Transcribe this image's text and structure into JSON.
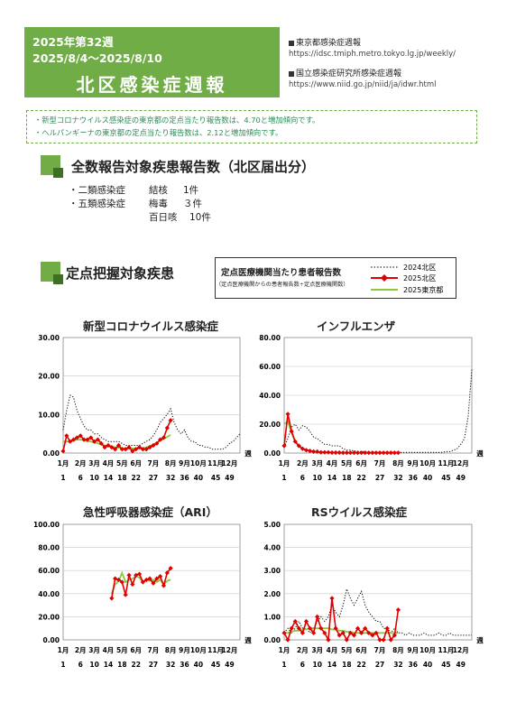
{
  "header": {
    "week": "2025年第32週",
    "range": "2025/8/4～2025/8/10",
    "title": "北区感染症週報",
    "bg": "#70ad47"
  },
  "links": [
    {
      "label": "東京都感染症週報",
      "url": "https://idsc.tmiph.metro.tokyo.lg.jp/weekly/"
    },
    {
      "label": "国立感染症研究所感染症週報",
      "url": "https://www.niid.go.jp/niid/ja/idwr.html"
    }
  ],
  "notice": [
    "・新型コロナウイルス感染症の東京都の定点当たり報告数は、4.70と増加傾向です。",
    "・ヘルパンギーナの東京都の定点当たり報告数は、2.12と増加傾向です。"
  ],
  "section1": {
    "title": "全数報告対象疾患報告数（北区届出分）",
    "rows": [
      {
        "category": "・二類感染症",
        "disease": "結核",
        "count": "1件"
      },
      {
        "category": "・五類感染症",
        "disease": "梅毒",
        "count": "３件"
      },
      {
        "category": "",
        "disease": "百日咳",
        "count": "10件"
      }
    ]
  },
  "section2": {
    "title": "定点把握対象疾患"
  },
  "legend": {
    "title": "定点医療機関当たり患者報告数",
    "subtitle": "（定点医療機関からの患者報告数÷定点医療機関数）",
    "items": [
      {
        "name": "2024北区",
        "style": "dotted",
        "color": "#000000"
      },
      {
        "name": "2025北区",
        "style": "marker",
        "color": "#e00000"
      },
      {
        "name": "2025東京都",
        "style": "line",
        "color": "#8dc63f"
      }
    ]
  },
  "x_axis": {
    "months": [
      "1月",
      "2月",
      "3月",
      "4月",
      "5月",
      "6月",
      "7月",
      "8月",
      "9月",
      "10月",
      "11月",
      "12月"
    ],
    "weeks": [
      "1",
      "6",
      "10",
      "14",
      "18",
      "22",
      "27",
      "32",
      "36",
      "40",
      "45",
      "49"
    ],
    "unit": "週"
  },
  "chart_data": [
    {
      "type": "line",
      "title": "新型コロナウイルス感染症",
      "ylim": [
        0,
        30
      ],
      "yticks": [
        "0.00",
        "10.00",
        "20.00",
        "30.00"
      ],
      "grid": true,
      "series": [
        {
          "name": "2024北区",
          "x": [
            1,
            2,
            3,
            4,
            5,
            6,
            7,
            8,
            9,
            10,
            11,
            12,
            13,
            14,
            15,
            16,
            17,
            18,
            19,
            20,
            21,
            22,
            23,
            24,
            25,
            26,
            27,
            28,
            29,
            30,
            31,
            32,
            33,
            34,
            35,
            36,
            37,
            38,
            39,
            40,
            41,
            42,
            43,
            44,
            45,
            46,
            47,
            48,
            49,
            50,
            51,
            52
          ],
          "values": [
            6,
            11,
            15,
            14.5,
            11,
            9,
            7,
            6,
            6,
            5,
            5,
            4,
            3.5,
            3,
            3,
            3,
            3,
            2.5,
            2,
            2,
            2,
            2,
            2,
            2.5,
            3,
            3.5,
            4.5,
            6,
            8,
            9,
            10,
            11.5,
            8,
            6,
            5,
            6,
            4,
            3,
            3,
            2,
            2,
            1.5,
            1.5,
            1,
            1,
            1,
            1,
            1.5,
            2.5,
            3,
            4,
            5
          ]
        },
        {
          "name": "2025北区",
          "x": [
            1,
            2,
            3,
            4,
            5,
            6,
            7,
            8,
            9,
            10,
            11,
            12,
            13,
            14,
            15,
            16,
            17,
            18,
            19,
            20,
            21,
            22,
            23,
            24,
            25,
            26,
            27,
            28,
            29,
            30,
            31,
            32
          ],
          "values": [
            0.5,
            4.5,
            3,
            3.5,
            4,
            4.5,
            3.5,
            3.5,
            4,
            3,
            3.5,
            2.5,
            1.5,
            2,
            1.5,
            1,
            2,
            1,
            1,
            1.5,
            0.5,
            1,
            1.5,
            1,
            1,
            1.5,
            2,
            2.5,
            3.5,
            4,
            6.5,
            8.5
          ]
        },
        {
          "name": "2025東京都",
          "x": [
            1,
            2,
            3,
            4,
            5,
            6,
            7,
            8,
            9,
            10,
            11,
            12,
            13,
            14,
            15,
            16,
            17,
            18,
            19,
            20,
            21,
            22,
            23,
            24,
            25,
            26,
            27,
            28,
            29,
            30,
            31,
            32
          ],
          "values": [
            3,
            3,
            3,
            3.2,
            3.5,
            3.5,
            3.3,
            3,
            3,
            2.7,
            2.5,
            2.2,
            2,
            1.9,
            1.7,
            1.5,
            1.4,
            1.3,
            1.2,
            1.2,
            1.2,
            1.2,
            1.2,
            1.3,
            1.5,
            1.8,
            2.2,
            2.7,
            3.2,
            3.7,
            4.2,
            4.7
          ]
        }
      ]
    },
    {
      "type": "line",
      "title": "インフルエンザ",
      "ylim": [
        0,
        80
      ],
      "yticks": [
        "0.00",
        "20.00",
        "40.00",
        "60.00",
        "80.00"
      ],
      "grid": true,
      "series": [
        {
          "name": "2024北区",
          "x": [
            1,
            2,
            3,
            4,
            5,
            6,
            7,
            8,
            9,
            10,
            11,
            12,
            13,
            14,
            15,
            16,
            17,
            18,
            19,
            20,
            21,
            22,
            23,
            24,
            25,
            26,
            27,
            28,
            29,
            30,
            31,
            32,
            33,
            34,
            35,
            36,
            37,
            38,
            39,
            40,
            41,
            42,
            43,
            44,
            45,
            46,
            47,
            48,
            49,
            50,
            51,
            52
          ],
          "values": [
            4,
            10,
            18,
            20,
            16,
            19,
            18,
            15,
            11,
            10,
            8,
            6,
            6,
            5,
            5,
            5,
            3,
            2,
            2,
            1.5,
            1,
            1,
            1,
            0.8,
            0.5,
            0.5,
            0.5,
            0.5,
            0.5,
            0.5,
            0.5,
            0.5,
            0.5,
            0.5,
            0.5,
            0.5,
            0.5,
            0.5,
            0.5,
            0.5,
            0.5,
            0.5,
            0.5,
            0.5,
            1,
            1,
            2,
            3,
            6,
            10,
            25,
            58
          ]
        },
        {
          "name": "2025北区",
          "x": [
            1,
            2,
            3,
            4,
            5,
            6,
            7,
            8,
            9,
            10,
            11,
            12,
            13,
            14,
            15,
            16,
            17,
            18,
            19,
            20,
            21,
            22,
            23,
            24,
            25,
            26,
            27,
            28,
            29,
            30,
            31,
            32
          ],
          "values": [
            5,
            27,
            15,
            8,
            5,
            3,
            2,
            1.5,
            1,
            1,
            0.5,
            0.5,
            0.5,
            0.3,
            0.3,
            0.3,
            0.2,
            0.2,
            0.2,
            0.2,
            0.2,
            0.2,
            0.2,
            0.2,
            0.2,
            0.2,
            0.2,
            0.2,
            0.2,
            0.2,
            0.2,
            0.2
          ]
        },
        {
          "name": "2025東京都",
          "x": [
            1,
            2,
            3,
            4,
            5,
            6,
            7,
            8,
            9,
            10,
            11,
            12,
            13,
            14,
            15,
            16,
            17,
            18,
            19,
            20,
            21,
            22,
            23,
            24,
            25,
            26,
            27,
            28,
            29,
            30,
            31,
            32
          ],
          "values": [
            20,
            22,
            14,
            8,
            5,
            3,
            2,
            1.5,
            1,
            0.8,
            0.5,
            0.5,
            0.3,
            0.3,
            0.3,
            0.2,
            0.2,
            0.2,
            0.2,
            0.2,
            0.2,
            0.2,
            0.2,
            0.2,
            0.2,
            0.2,
            0.2,
            0.2,
            0.2,
            0.2,
            0.2,
            0.2
          ]
        }
      ]
    },
    {
      "type": "line",
      "title": "急性呼吸器感染症（ARI）",
      "ylim": [
        0,
        100
      ],
      "yticks": [
        "0.00",
        "20.00",
        "40.00",
        "60.00",
        "80.00",
        "100.00"
      ],
      "grid": true,
      "series": [
        {
          "name": "2025北区",
          "x": [
            15,
            16,
            17,
            18,
            19,
            20,
            21,
            22,
            23,
            24,
            25,
            26,
            27,
            28,
            29,
            30,
            31,
            32
          ],
          "values": [
            36,
            53,
            52,
            50,
            39,
            56,
            48,
            56,
            57,
            50,
            52,
            53,
            49,
            53,
            55,
            47,
            58,
            62
          ]
        },
        {
          "name": "2025東京都",
          "x": [
            15,
            16,
            17,
            18,
            19,
            20,
            21,
            22,
            23,
            24,
            25,
            26,
            27,
            28,
            29,
            30,
            31,
            32
          ],
          "values": [
            40,
            48,
            51,
            58,
            50,
            52,
            53,
            55,
            54,
            50,
            52,
            51,
            52,
            50,
            52,
            48,
            51,
            52
          ]
        }
      ]
    },
    {
      "type": "line",
      "title": "RSウイルス感染症",
      "ylim": [
        0,
        5
      ],
      "yticks": [
        "0.00",
        "1.00",
        "2.00",
        "3.00",
        "4.00",
        "5.00"
      ],
      "grid": true,
      "series": [
        {
          "name": "2024北区",
          "x": [
            1,
            2,
            3,
            4,
            5,
            6,
            7,
            8,
            9,
            10,
            11,
            12,
            13,
            14,
            15,
            16,
            17,
            18,
            19,
            20,
            21,
            22,
            23,
            24,
            25,
            26,
            27,
            28,
            29,
            30,
            31,
            32,
            33,
            34,
            35,
            36,
            37,
            38,
            39,
            40,
            41,
            42,
            43,
            44,
            45,
            46,
            47,
            48,
            49,
            50,
            51,
            52
          ],
          "values": [
            0.3,
            0.5,
            0.3,
            0.5,
            0.8,
            0.5,
            0.5,
            0.3,
            0.5,
            0.8,
            1,
            0.8,
            1,
            1.5,
            1.2,
            1,
            1.5,
            2.2,
            1.8,
            1.5,
            1.8,
            2.1,
            1.5,
            1.2,
            1,
            0.8,
            0.8,
            0.5,
            0.5,
            0.3,
            0.5,
            0.3,
            0.3,
            0.2,
            0.3,
            0.2,
            0.2,
            0.2,
            0.3,
            0.2,
            0.2,
            0.2,
            0.3,
            0.2,
            0.2,
            0.3,
            0.2,
            0.2,
            0.2,
            0.2,
            0.2,
            0.2
          ]
        },
        {
          "name": "2025北区",
          "x": [
            1,
            2,
            3,
            4,
            5,
            6,
            7,
            8,
            9,
            10,
            11,
            12,
            13,
            14,
            15,
            16,
            17,
            18,
            19,
            20,
            21,
            22,
            23,
            24,
            25,
            26,
            27,
            28,
            29,
            30,
            31,
            32
          ],
          "values": [
            0.3,
            0,
            0.5,
            0.8,
            0.5,
            0.3,
            0.8,
            0.5,
            0.3,
            1,
            0.5,
            0.3,
            0,
            1.8,
            0.5,
            0.2,
            0.3,
            0,
            0.3,
            0.2,
            0.5,
            0.3,
            0.5,
            0.3,
            0.2,
            0.3,
            0,
            0,
            0.5,
            0,
            0.2,
            1.3
          ]
        },
        {
          "name": "2025東京都",
          "x": [
            1,
            2,
            3,
            4,
            5,
            6,
            7,
            8,
            9,
            10,
            11,
            12,
            13,
            14,
            15,
            16,
            17,
            18,
            19,
            20,
            21,
            22,
            23,
            24,
            25,
            26,
            27,
            28,
            29,
            30,
            31,
            32
          ],
          "values": [
            0.3,
            0.3,
            0.35,
            0.4,
            0.4,
            0.45,
            0.45,
            0.5,
            0.5,
            0.5,
            0.5,
            0.5,
            0.5,
            0.45,
            0.45,
            0.4,
            0.4,
            0.35,
            0.35,
            0.3,
            0.3,
            0.3,
            0.3,
            0.3,
            0.3,
            0.3,
            0.3,
            0.3,
            0.3,
            0.3,
            0.3,
            0.3
          ]
        }
      ]
    }
  ]
}
